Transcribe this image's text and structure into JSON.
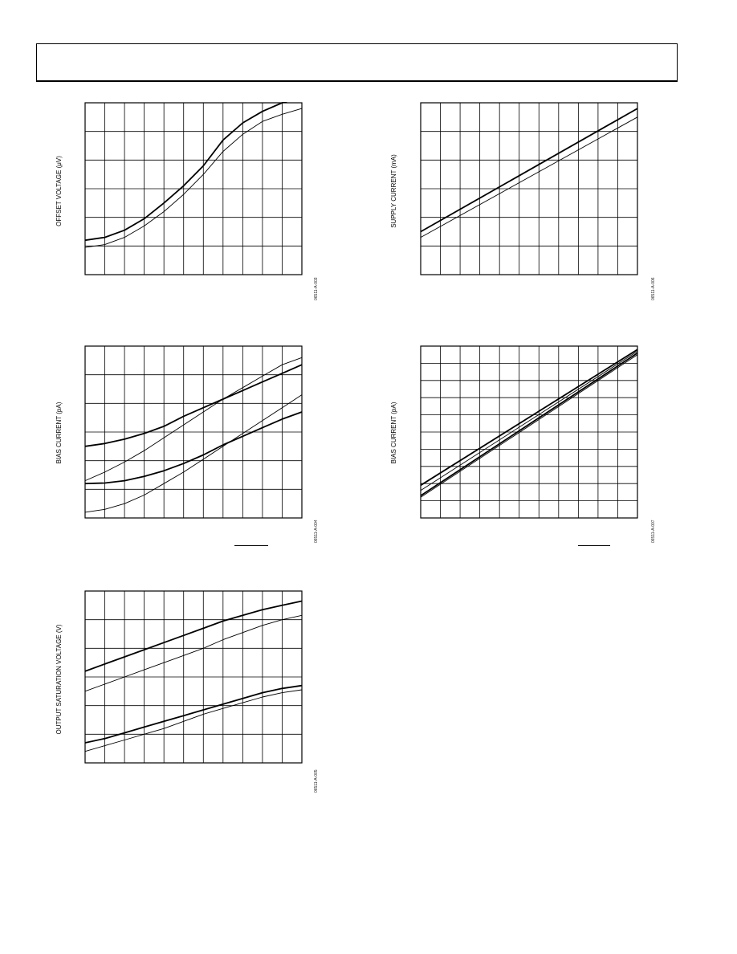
{
  "header": {},
  "charts": [
    {
      "id": "offset-voltage",
      "ylabel": "OFFSET VOLTAGE (μV)",
      "fig_id": "06511-A-003"
    },
    {
      "id": "supply-current",
      "ylabel": "SUPPLY CURRENT (mA)",
      "fig_id": "06511-A-006"
    },
    {
      "id": "bias-current-left",
      "ylabel": "BIAS CURRENT (pA)",
      "fig_id": "06511-A-004"
    },
    {
      "id": "bias-current-right",
      "ylabel": "BIAS CURRENT (pA)",
      "fig_id": "06511-A-007"
    },
    {
      "id": "output-saturation",
      "ylabel": "OUTPUT SATURATION VOLTAGE (V)",
      "fig_id": "06511-A-005"
    }
  ],
  "chart_data": [
    {
      "type": "line",
      "ylabel": "OFFSET VOLTAGE (μV)",
      "grid": true,
      "xlim": [
        0,
        11
      ],
      "ylim": [
        0,
        6
      ],
      "series": [
        {
          "x": [
            0,
            1,
            2,
            3,
            4,
            5,
            6,
            7,
            8,
            9,
            10,
            11
          ],
          "y": [
            1.2,
            1.3,
            1.55,
            1.95,
            2.5,
            3.1,
            3.8,
            4.7,
            5.3,
            5.7,
            6.0,
            6.2
          ]
        },
        {
          "x": [
            0,
            1,
            2,
            3,
            4,
            5,
            6,
            7,
            8,
            9,
            10,
            11
          ],
          "y": [
            0.95,
            1.05,
            1.3,
            1.7,
            2.2,
            2.8,
            3.5,
            4.3,
            4.9,
            5.35,
            5.6,
            5.8
          ]
        }
      ]
    },
    {
      "type": "line",
      "ylabel": "SUPPLY CURRENT (mA)",
      "grid": true,
      "xlim": [
        0,
        11
      ],
      "ylim": [
        0,
        6
      ],
      "series": [
        {
          "x": [
            0,
            11
          ],
          "y": [
            1.5,
            5.8
          ]
        },
        {
          "x": [
            0,
            11
          ],
          "y": [
            1.3,
            5.5
          ]
        }
      ]
    },
    {
      "type": "line",
      "ylabel": "BIAS CURRENT (pA)",
      "grid": true,
      "xlim": [
        0,
        11
      ],
      "ylim": [
        0,
        6
      ],
      "series": [
        {
          "x": [
            0,
            1,
            2,
            3,
            4,
            5,
            6,
            7,
            8,
            9,
            10,
            11
          ],
          "y": [
            2.5,
            2.6,
            2.75,
            2.95,
            3.2,
            3.55,
            3.85,
            4.15,
            4.45,
            4.75,
            5.05,
            5.35
          ]
        },
        {
          "x": [
            0,
            1,
            2,
            3,
            4,
            5,
            6,
            7,
            8,
            9,
            10,
            11
          ],
          "y": [
            1.3,
            1.6,
            1.95,
            2.35,
            2.8,
            3.25,
            3.7,
            4.15,
            4.55,
            4.95,
            5.35,
            5.6
          ]
        },
        {
          "x": [
            0,
            1,
            2,
            3,
            4,
            5,
            6,
            7,
            8,
            9,
            10,
            11
          ],
          "y": [
            1.2,
            1.22,
            1.3,
            1.45,
            1.65,
            1.9,
            2.2,
            2.55,
            2.85,
            3.15,
            3.45,
            3.7
          ]
        },
        {
          "x": [
            0,
            1,
            2,
            3,
            4,
            5,
            6,
            7,
            8,
            9,
            10,
            11
          ],
          "y": [
            0.2,
            0.3,
            0.5,
            0.8,
            1.2,
            1.6,
            2.05,
            2.5,
            2.95,
            3.4,
            3.85,
            4.3
          ]
        }
      ]
    },
    {
      "type": "line",
      "ylabel": "BIAS CURRENT (pA)",
      "grid": true,
      "xlim": [
        0,
        11
      ],
      "ylim": [
        0,
        10
      ],
      "series": [
        {
          "x": [
            0,
            11
          ],
          "y": [
            1.9,
            9.8
          ]
        },
        {
          "x": [
            0,
            11
          ],
          "y": [
            1.6,
            9.7
          ]
        },
        {
          "x": [
            0,
            11
          ],
          "y": [
            1.3,
            9.6
          ]
        },
        {
          "x": [
            0,
            11
          ],
          "y": [
            1.2,
            9.5
          ]
        }
      ]
    },
    {
      "type": "line",
      "ylabel": "OUTPUT SATURATION VOLTAGE (V)",
      "grid": true,
      "xlim": [
        0,
        11
      ],
      "ylim": [
        0,
        6
      ],
      "series": [
        {
          "x": [
            0,
            1,
            2,
            3,
            4,
            5,
            6,
            7,
            8,
            9,
            10,
            11
          ],
          "y": [
            3.2,
            3.45,
            3.7,
            3.95,
            4.2,
            4.45,
            4.7,
            4.95,
            5.15,
            5.35,
            5.5,
            5.65
          ]
        },
        {
          "x": [
            0,
            1,
            2,
            3,
            4,
            5,
            6,
            7,
            8,
            9,
            10,
            11
          ],
          "y": [
            2.5,
            2.75,
            3.0,
            3.25,
            3.5,
            3.75,
            4.0,
            4.3,
            4.55,
            4.8,
            5.0,
            5.15
          ]
        },
        {
          "x": [
            0,
            1,
            2,
            3,
            4,
            5,
            6,
            7,
            8,
            9,
            10,
            11
          ],
          "y": [
            0.7,
            0.85,
            1.05,
            1.25,
            1.45,
            1.65,
            1.85,
            2.05,
            2.25,
            2.45,
            2.6,
            2.7
          ]
        },
        {
          "x": [
            0,
            1,
            2,
            3,
            4,
            5,
            6,
            7,
            8,
            9,
            10,
            11
          ],
          "y": [
            0.4,
            0.6,
            0.8,
            1.0,
            1.2,
            1.45,
            1.7,
            1.9,
            2.1,
            2.3,
            2.45,
            2.55
          ]
        }
      ]
    }
  ]
}
